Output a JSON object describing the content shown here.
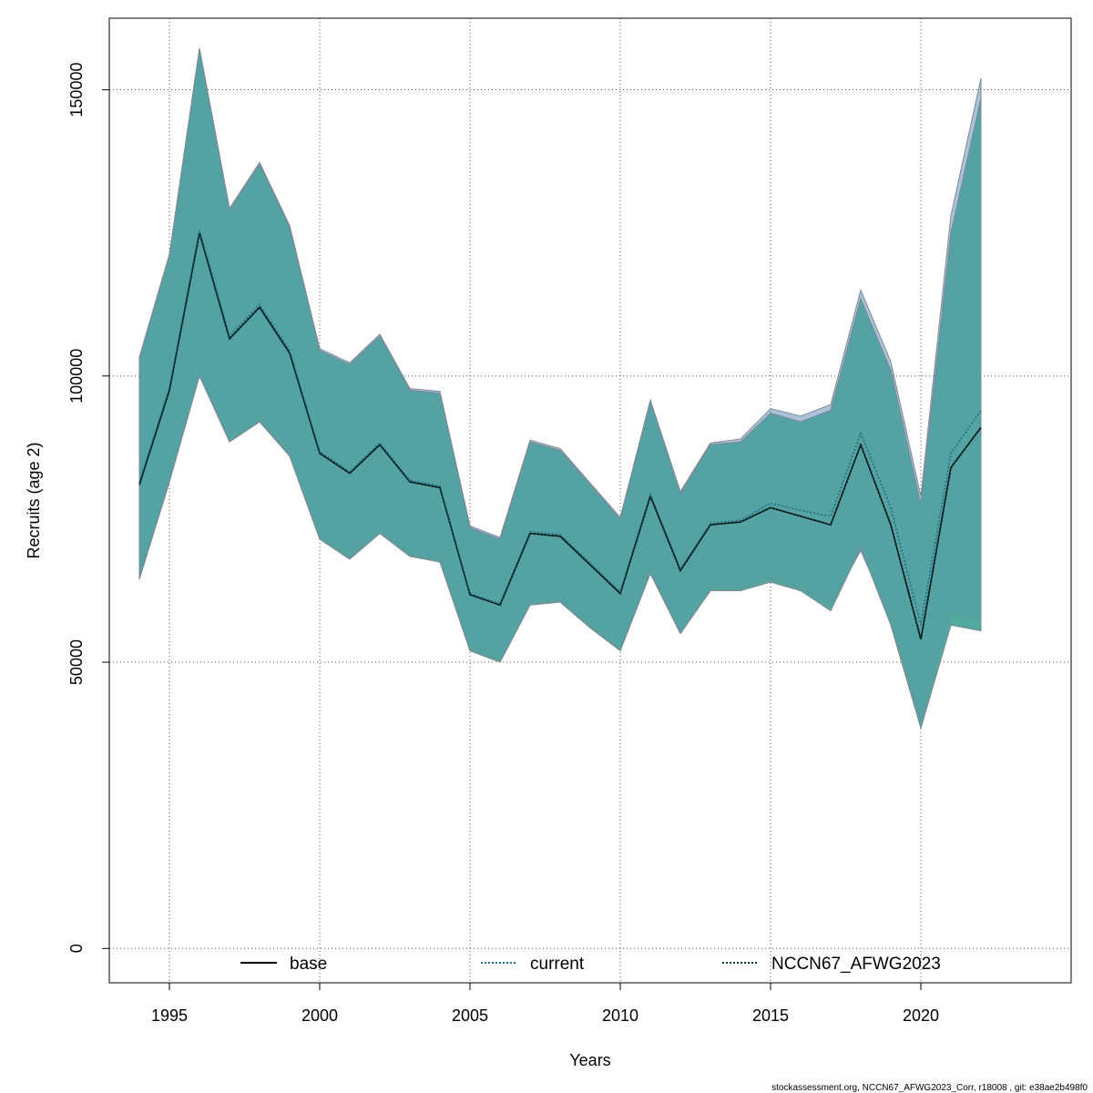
{
  "chart_data": {
    "type": "area",
    "xlabel": "Years",
    "ylabel": "Recruits (age 2)",
    "xlim": [
      1993,
      2025
    ],
    "ylim": [
      -6000,
      162500
    ],
    "xticks": [
      1995,
      2000,
      2005,
      2010,
      2015,
      2020
    ],
    "yticks": [
      0,
      50000,
      100000,
      150000
    ],
    "xtick_labels": [
      "1995",
      "2000",
      "2005",
      "2010",
      "2015",
      "2020"
    ],
    "ytick_labels": [
      "0",
      "50000",
      "100000",
      "150000"
    ],
    "grid": true,
    "legend_position": "bottom",
    "x": [
      1994,
      1995,
      1996,
      1997,
      1998,
      1999,
      2000,
      2001,
      2002,
      2003,
      2004,
      2005,
      2006,
      2007,
      2008,
      2009,
      2010,
      2011,
      2012,
      2013,
      2014,
      2015,
      2016,
      2017,
      2018,
      2019,
      2020,
      2021,
      2022
    ],
    "series": [
      {
        "name": "base",
        "color": "#000000",
        "dash": "solid",
        "band_color": "#3f9e8f",
        "values": [
          81000,
          97500,
          125000,
          106500,
          112000,
          104000,
          86500,
          83000,
          88000,
          81500,
          80500,
          61800,
          60000,
          72500,
          72000,
          67000,
          62000,
          79000,
          66000,
          74000,
          74500,
          77000,
          75500,
          74000,
          88000,
          74000,
          54000,
          84000,
          91000
        ],
        "lower": [
          64500,
          81500,
          100000,
          88500,
          92000,
          86000,
          71500,
          68000,
          72500,
          68500,
          67500,
          52000,
          50000,
          60000,
          60500,
          56000,
          52000,
          65500,
          55000,
          62500,
          62500,
          64000,
          62500,
          59000,
          70000,
          56500,
          38500,
          56500,
          55500
        ],
        "upper": [
          103000,
          121000,
          157000,
          129000,
          137000,
          126000,
          104500,
          102000,
          107000,
          97500,
          97000,
          73500,
          71500,
          88500,
          87000,
          81000,
          75000,
          95500,
          79500,
          88000,
          88500,
          93500,
          92000,
          94000,
          113500,
          101000,
          77500,
          125000,
          148500
        ]
      },
      {
        "name": "current",
        "color": "#1f6f8b",
        "dash": "dotted",
        "band_color": "#6a8fb3",
        "values": [
          81500,
          98000,
          125500,
          107000,
          112500,
          104500,
          86800,
          83300,
          88300,
          81800,
          80800,
          62000,
          60200,
          72800,
          72300,
          67300,
          62300,
          79300,
          66300,
          74300,
          74800,
          77800,
          76500,
          75500,
          90000,
          77000,
          56500,
          86500,
          94000
        ],
        "lower": [
          64800,
          81800,
          100200,
          88800,
          92300,
          86300,
          71800,
          68300,
          72800,
          68800,
          67800,
          52200,
          50200,
          60200,
          60800,
          56300,
          52300,
          65800,
          55300,
          62800,
          63000,
          64500,
          63000,
          60000,
          69500,
          57500,
          39500,
          58500,
          57500
        ],
        "upper": [
          103300,
          121300,
          157300,
          129300,
          137300,
          126300,
          104800,
          102300,
          107300,
          97800,
          97300,
          73800,
          71800,
          88800,
          87300,
          81300,
          75300,
          95800,
          79800,
          88300,
          89000,
          94300,
          93000,
          95000,
          115000,
          102500,
          79000,
          128000,
          152000
        ]
      },
      {
        "name": "NCCN67_AFWG2023",
        "color": "#0b3d3a",
        "dash": "dotted",
        "band_color": "#4aa89a",
        "values": [
          81000,
          97500,
          125000,
          106500,
          112000,
          104000,
          86500,
          83000,
          88000,
          81500,
          80500,
          61800,
          60000,
          72500,
          72000,
          67000,
          62000,
          79000,
          66000,
          74000,
          74500,
          77000,
          75500,
          74000,
          88000,
          74000,
          54000,
          84000,
          91000
        ],
        "lower": [
          64500,
          81500,
          100000,
          88500,
          92000,
          86000,
          71500,
          68000,
          72500,
          68500,
          67500,
          52000,
          50000,
          60000,
          60500,
          56000,
          52000,
          65500,
          55000,
          62500,
          62500,
          64000,
          62500,
          59000,
          70000,
          56500,
          38500,
          56500,
          55500
        ],
        "upper": [
          103000,
          121000,
          157000,
          129000,
          137000,
          126000,
          104500,
          102000,
          107000,
          97500,
          97000,
          73500,
          71500,
          88500,
          87000,
          81000,
          75000,
          95500,
          79500,
          88000,
          88500,
          93500,
          92000,
          94000,
          113500,
          101000,
          77500,
          125000,
          148500
        ]
      }
    ]
  },
  "footer": "stockassessment.org, NCCN67_AFWG2023_Corr, r18008 , git: e38ae2b498f0"
}
